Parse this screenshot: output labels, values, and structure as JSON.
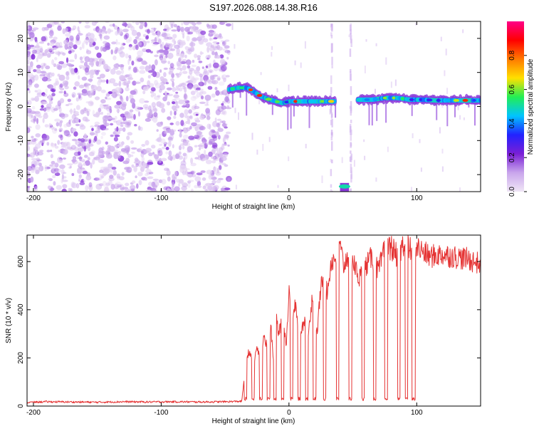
{
  "title": "S197.2026.088.14.38.R16",
  "colors": {
    "line": "#e53333",
    "axis": "#000000",
    "background": "#ffffff",
    "colorbar_stops": [
      "#f0e6f6",
      "#c9a6ec",
      "#7a1fd6",
      "#2222ff",
      "#00c4ff",
      "#22ee55",
      "#ffe000",
      "#ff7a00",
      "#ff0000",
      "#ff0088"
    ]
  },
  "chart_data": [
    {
      "type": "heatmap",
      "xlabel": "Height of straight line (km)",
      "ylabel": "Frequency (Hz)",
      "xlim": [
        -205,
        150
      ],
      "ylim": [
        -25,
        25
      ],
      "x_ticks": [
        -200,
        -100,
        0,
        100
      ],
      "x_tick_labels": [
        "-200",
        "-100",
        "0",
        "100"
      ],
      "y_ticks": [
        -20,
        -10,
        0,
        10,
        20
      ],
      "y_tick_labels": [
        "-20",
        "-10",
        "0",
        "10",
        "20"
      ],
      "noise_region": {
        "x": [
          -205,
          -47
        ],
        "density": "high",
        "amplitude_range": [
          0.02,
          0.2
        ]
      },
      "ridge": {
        "description": "dominant frequency track",
        "points": [
          [
            -47,
            5
          ],
          [
            -40,
            5.5
          ],
          [
            -33,
            5.5
          ],
          [
            -28,
            4.5
          ],
          [
            -22,
            3
          ],
          [
            -15,
            2
          ],
          [
            -10,
            1.5
          ],
          [
            -5,
            1
          ],
          [
            0,
            1.5
          ],
          [
            10,
            1.5
          ],
          [
            20,
            1.5
          ],
          [
            30,
            1.5
          ],
          [
            35,
            1.5
          ],
          [
            55,
            2
          ],
          [
            65,
            2
          ],
          [
            75,
            2.5
          ],
          [
            85,
            2.5
          ],
          [
            95,
            2
          ],
          [
            105,
            2
          ],
          [
            115,
            1.8
          ],
          [
            130,
            1.8
          ],
          [
            150,
            1.8
          ]
        ],
        "amplitude_range": [
          0.3,
          0.9
        ]
      },
      "low_frequency_blob": {
        "x": [
          40,
          47
        ],
        "y": -23.5,
        "amplitude": 0.5
      },
      "colorbar": {
        "label": "Normalized spectral amplitude",
        "range": [
          0,
          1
        ],
        "ticks": [
          0.0,
          0.2,
          0.4,
          0.6,
          0.8
        ],
        "tick_labels": [
          "0.0",
          "0.2",
          "0.4",
          "0.6",
          "0.8"
        ]
      }
    },
    {
      "type": "line",
      "xlabel": "Height of straight line (km)",
      "ylabel": "SNR (10 * v/v)",
      "xlim": [
        -205,
        150
      ],
      "ylim": [
        0,
        710
      ],
      "x_ticks": [
        -200,
        -100,
        0,
        100
      ],
      "x_tick_labels": [
        "-200",
        "-100",
        "0",
        "100"
      ],
      "y_ticks": [
        0,
        200,
        400,
        600
      ],
      "y_tick_labels": [
        "0",
        "200",
        "400",
        "600"
      ],
      "series": [
        {
          "name": "SNR",
          "x": [
            -205,
            -190,
            -170,
            -150,
            -130,
            -110,
            -90,
            -70,
            -50,
            -37,
            -33,
            -31,
            -28,
            -25,
            -22,
            -20,
            -17,
            -14,
            -12,
            -10,
            -8,
            -5,
            -2,
            0,
            2,
            5,
            8,
            12,
            15,
            18,
            22,
            25,
            28,
            30,
            33,
            38,
            40,
            43,
            47,
            50,
            55,
            60,
            65,
            70,
            75,
            80,
            85,
            90,
            95,
            100,
            105,
            110,
            120,
            130,
            140,
            150
          ],
          "values": [
            15,
            18,
            17,
            16,
            18,
            17,
            18,
            17,
            18,
            20,
            200,
            230,
            160,
            250,
            170,
            300,
            240,
            320,
            180,
            390,
            300,
            360,
            260,
            480,
            330,
            420,
            280,
            360,
            300,
            440,
            300,
            500,
            510,
            470,
            600,
            620,
            660,
            580,
            640,
            600,
            530,
            580,
            620,
            560,
            650,
            660,
            620,
            680,
            650,
            660,
            640,
            620,
            630,
            620,
            610,
            590
          ]
        }
      ],
      "dropouts": {
        "x_centers": [
          -34,
          -28,
          -22,
          -16,
          -11,
          -5,
          2,
          8,
          14,
          20,
          28,
          38,
          48,
          58,
          67,
          76,
          86,
          92
        ],
        "floor": 30,
        "note": "periodic drops of SNR to the 20-40 level"
      }
    }
  ]
}
